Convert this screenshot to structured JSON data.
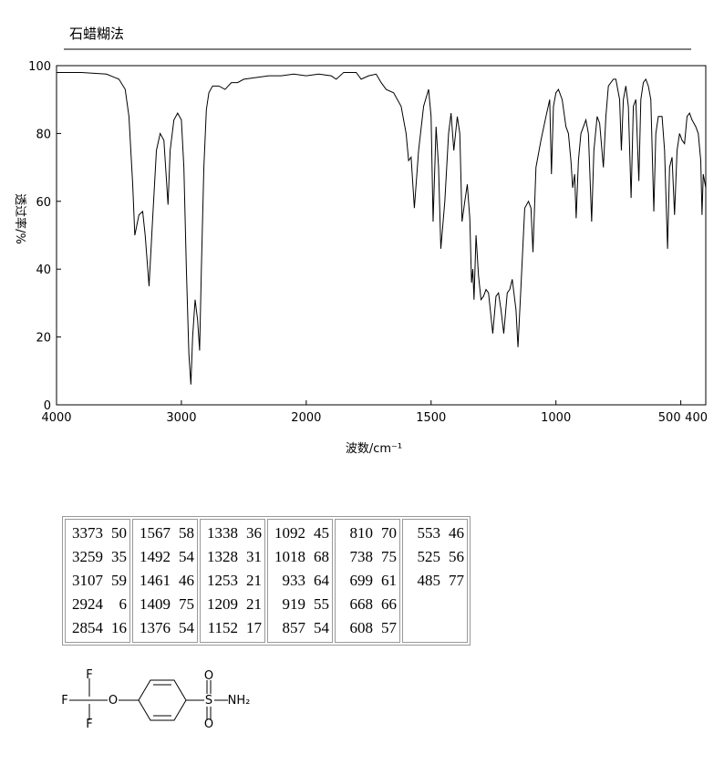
{
  "header": {
    "method": "石蜡糊法"
  },
  "chart_data": {
    "type": "line",
    "xlabel": "波数/cm⁻¹",
    "ylabel": "透过率/%",
    "xlim": [
      4000,
      400
    ],
    "ylim": [
      0,
      100
    ],
    "x_scale_break": 2000,
    "xticks": [
      4000,
      3000,
      2000,
      1500,
      1000,
      500,
      400
    ],
    "yticks": [
      0,
      20,
      40,
      60,
      80,
      100
    ],
    "x": [
      4000,
      3800,
      3600,
      3500,
      3450,
      3420,
      3390,
      3373,
      3340,
      3310,
      3290,
      3259,
      3230,
      3200,
      3170,
      3140,
      3107,
      3090,
      3060,
      3030,
      3000,
      2980,
      2960,
      2940,
      2924,
      2910,
      2890,
      2870,
      2854,
      2840,
      2820,
      2800,
      2780,
      2750,
      2700,
      2650,
      2600,
      2550,
      2500,
      2400,
      2300,
      2200,
      2100,
      2000,
      1950,
      1900,
      1880,
      1850,
      1800,
      1780,
      1750,
      1720,
      1700,
      1680,
      1650,
      1620,
      1600,
      1590,
      1580,
      1567,
      1550,
      1530,
      1510,
      1500,
      1492,
      1480,
      1470,
      1461,
      1445,
      1430,
      1420,
      1409,
      1395,
      1385,
      1376,
      1365,
      1355,
      1345,
      1338,
      1333,
      1328,
      1320,
      1310,
      1300,
      1290,
      1280,
      1270,
      1253,
      1240,
      1230,
      1220,
      1209,
      1195,
      1185,
      1175,
      1160,
      1152,
      1140,
      1125,
      1110,
      1100,
      1092,
      1080,
      1060,
      1040,
      1025,
      1018,
      1010,
      1000,
      990,
      975,
      960,
      950,
      940,
      933,
      925,
      919,
      910,
      900,
      880,
      870,
      857,
      848,
      835,
      825,
      810,
      800,
      790,
      770,
      760,
      745,
      738,
      730,
      720,
      710,
      699,
      690,
      680,
      668,
      660,
      650,
      640,
      630,
      620,
      608,
      600,
      590,
      575,
      565,
      553,
      545,
      535,
      525,
      515,
      505,
      495,
      485,
      475,
      465,
      455,
      440,
      430,
      420,
      415,
      410,
      400
    ],
    "series": [
      {
        "color": "#000000",
        "values": [
          98,
          98,
          97.5,
          96,
          93,
          85,
          65,
          50,
          56,
          57,
          50,
          35,
          55,
          75,
          80,
          78,
          59,
          75,
          84,
          86,
          84,
          70,
          40,
          15,
          6,
          20,
          31,
          25,
          16,
          40,
          70,
          87,
          92,
          94,
          94,
          93,
          95,
          95,
          96,
          96.5,
          97,
          97,
          97.5,
          97,
          97.5,
          97,
          96,
          98,
          98,
          96,
          97,
          97.5,
          95,
          93,
          92,
          88,
          80,
          72,
          73,
          58,
          75,
          88,
          93,
          85,
          54,
          82,
          70,
          46,
          60,
          80,
          86,
          75,
          85,
          80,
          54,
          60,
          65,
          55,
          36,
          40,
          31,
          50,
          38,
          31,
          32,
          34,
          33,
          21,
          32,
          33,
          28,
          21,
          33,
          34,
          37,
          28,
          17,
          35,
          58,
          60,
          58,
          45,
          70,
          78,
          85,
          90,
          68,
          88,
          92,
          93,
          90,
          82,
          80,
          72,
          64,
          68,
          55,
          72,
          80,
          84,
          80,
          54,
          75,
          85,
          83,
          70,
          85,
          94,
          96,
          96,
          90,
          75,
          90,
          94,
          88,
          61,
          88,
          90,
          66,
          90,
          95,
          96,
          94,
          90,
          57,
          80,
          85,
          85,
          75,
          46,
          70,
          73,
          56,
          75,
          80,
          78,
          77,
          85,
          86,
          84,
          82,
          80,
          72,
          56,
          68,
          64
        ]
      }
    ]
  },
  "table": {
    "columns": [
      [
        [
          3373,
          50
        ],
        [
          3259,
          35
        ],
        [
          3107,
          59
        ],
        [
          2924,
          6
        ],
        [
          2854,
          16
        ]
      ],
      [
        [
          1567,
          58
        ],
        [
          1492,
          54
        ],
        [
          1461,
          46
        ],
        [
          1409,
          75
        ],
        [
          1376,
          54
        ]
      ],
      [
        [
          1338,
          36
        ],
        [
          1328,
          31
        ],
        [
          1253,
          21
        ],
        [
          1209,
          21
        ],
        [
          1152,
          17
        ]
      ],
      [
        [
          1092,
          45
        ],
        [
          1018,
          68
        ],
        [
          933,
          64
        ],
        [
          919,
          55
        ],
        [
          857,
          54
        ]
      ],
      [
        [
          810,
          70
        ],
        [
          738,
          75
        ],
        [
          699,
          61
        ],
        [
          668,
          66
        ],
        [
          608,
          57
        ]
      ],
      [
        [
          553,
          46
        ],
        [
          525,
          56
        ],
        [
          485,
          77
        ]
      ]
    ]
  },
  "structure": {
    "atoms": [
      "F",
      "F",
      "F",
      "O",
      "S",
      "O",
      "O",
      "NH₂"
    ]
  }
}
